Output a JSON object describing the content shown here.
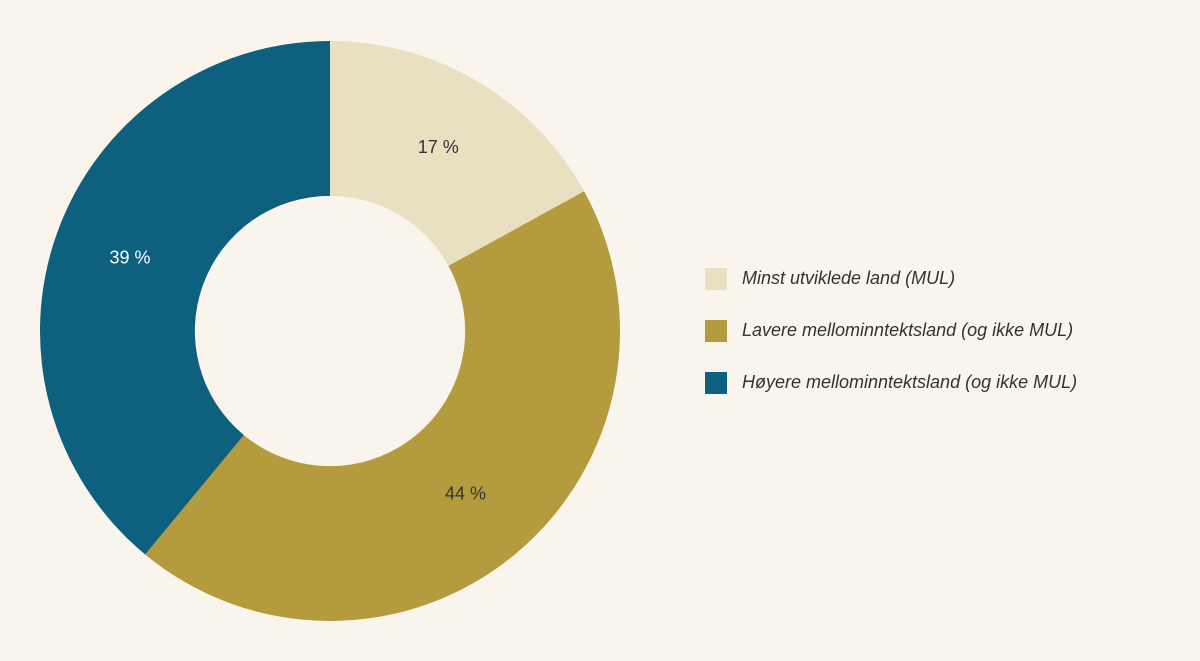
{
  "background_color": "#f9f5ec",
  "chart_data": {
    "type": "pie",
    "subtype": "donut",
    "title": "",
    "categories": [
      "Minst utviklede land (MUL)",
      "Lavere mellominntektsland (og ikke MUL)",
      "Høyere mellominntektsland (og ikke MUL)"
    ],
    "values": [
      17,
      44,
      39
    ],
    "value_labels": [
      "17 %",
      "44 %",
      "39 %"
    ],
    "colors": [
      "#e9dfc1",
      "#b49b3e",
      "#0e617e"
    ],
    "label_colors": [
      "#333333",
      "#333333",
      "#ffffff"
    ],
    "start_angle_deg": 0,
    "direction": "clockwise",
    "inner_radius_ratio": 0.466,
    "legend_position": "right",
    "grid": false
  }
}
